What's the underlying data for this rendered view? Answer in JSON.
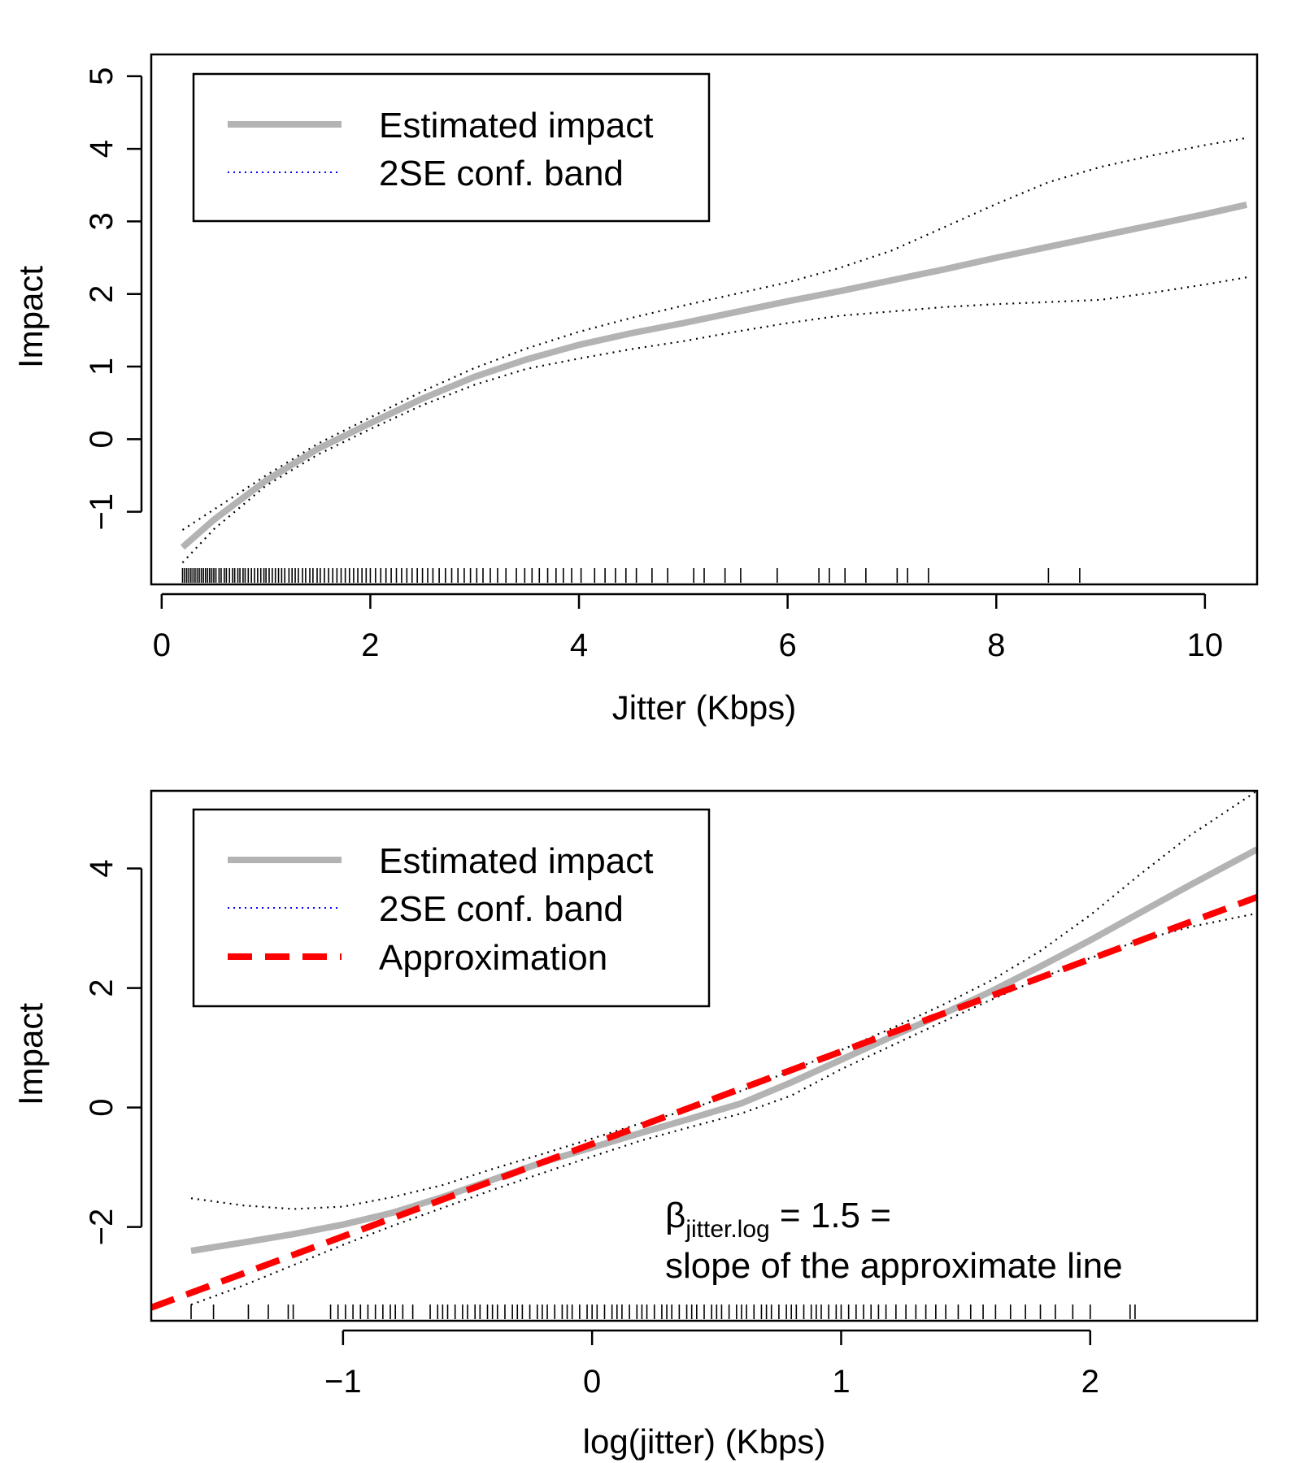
{
  "chart_data": [
    {
      "type": "line",
      "xlabel": "Jitter (Kbps)",
      "ylabel": "Impact",
      "xlim": [
        -0.1,
        10.5
      ],
      "ylim": [
        -2.0,
        5.3
      ],
      "xticks": [
        0,
        2,
        4,
        6,
        8,
        10
      ],
      "yticks": [
        -1,
        0,
        1,
        2,
        3,
        4,
        5
      ],
      "xtick_labels": [
        "0",
        "2",
        "4",
        "6",
        "8",
        "10"
      ],
      "ytick_labels": [
        "−1",
        "0",
        "1",
        "2",
        "3",
        "4",
        "5"
      ],
      "legend": {
        "position": "top-left",
        "entries": [
          "Estimated impact",
          "2SE conf. band"
        ]
      },
      "series": [
        {
          "name": "Estimated impact",
          "style": "solid",
          "color": "#b3b3b3",
          "x": [
            0.2,
            0.5,
            1.0,
            1.5,
            2.0,
            2.5,
            3.0,
            3.5,
            4.0,
            4.5,
            5.0,
            5.5,
            6.0,
            6.5,
            7.0,
            7.5,
            8.0,
            8.5,
            9.0,
            9.5,
            10.0,
            10.4
          ],
          "y": [
            -1.49,
            -1.11,
            -0.57,
            -0.13,
            0.22,
            0.56,
            0.86,
            1.1,
            1.3,
            1.46,
            1.6,
            1.75,
            1.9,
            2.04,
            2.19,
            2.34,
            2.5,
            2.65,
            2.8,
            2.95,
            3.1,
            3.23
          ]
        },
        {
          "name": "2SE conf. band",
          "style": "dotted",
          "color": "#000000",
          "x": [
            0.2,
            0.5,
            1.0,
            1.5,
            2.0,
            2.5,
            3.0,
            3.5,
            4.0,
            4.5,
            5.0,
            5.5,
            6.0,
            6.5,
            7.0,
            7.5,
            8.0,
            8.5,
            9.0,
            9.5,
            10.0,
            10.4
          ],
          "y": [
            -1.25,
            -0.97,
            -0.5,
            -0.06,
            0.3,
            0.66,
            0.98,
            1.25,
            1.48,
            1.67,
            1.84,
            2.0,
            2.16,
            2.36,
            2.6,
            2.92,
            3.24,
            3.54,
            3.75,
            3.91,
            4.05,
            4.15
          ]
        },
        {
          "name": "",
          "style": "dotted",
          "color": "#000000",
          "x": [
            0.2,
            0.5,
            1.0,
            1.5,
            2.0,
            2.5,
            3.0,
            3.5,
            4.0,
            4.5,
            5.0,
            5.5,
            6.0,
            6.5,
            7.0,
            7.5,
            8.0,
            8.5,
            9.0,
            9.5,
            10.0,
            10.4
          ],
          "y": [
            -1.7,
            -1.24,
            -0.64,
            -0.21,
            0.14,
            0.47,
            0.75,
            0.97,
            1.11,
            1.24,
            1.35,
            1.48,
            1.6,
            1.7,
            1.76,
            1.82,
            1.86,
            1.89,
            1.92,
            2.02,
            2.13,
            2.23
          ]
        }
      ],
      "rug": [
        0.2,
        0.22,
        0.24,
        0.26,
        0.28,
        0.3,
        0.32,
        0.34,
        0.36,
        0.38,
        0.4,
        0.42,
        0.44,
        0.46,
        0.48,
        0.5,
        0.52,
        0.55,
        0.57,
        0.6,
        0.62,
        0.65,
        0.68,
        0.7,
        0.73,
        0.75,
        0.78,
        0.8,
        0.83,
        0.86,
        0.89,
        0.92,
        0.95,
        0.98,
        1.0,
        1.03,
        1.06,
        1.09,
        1.12,
        1.15,
        1.18,
        1.22,
        1.25,
        1.28,
        1.31,
        1.35,
        1.38,
        1.42,
        1.45,
        1.49,
        1.52,
        1.56,
        1.6,
        1.64,
        1.68,
        1.72,
        1.76,
        1.8,
        1.84,
        1.88,
        1.92,
        1.96,
        2.0,
        2.05,
        2.1,
        2.15,
        2.2,
        2.25,
        2.3,
        2.35,
        2.4,
        2.45,
        2.5,
        2.55,
        2.6,
        2.66,
        2.72,
        2.78,
        2.84,
        2.9,
        2.96,
        3.02,
        3.08,
        3.15,
        3.22,
        3.3,
        3.4,
        3.48,
        3.55,
        3.62,
        3.7,
        3.78,
        3.85,
        3.93,
        4.02,
        4.15,
        4.25,
        4.35,
        4.45,
        4.55,
        4.7,
        4.85,
        5.1,
        5.2,
        5.4,
        5.55,
        5.9,
        6.3,
        6.4,
        6.55,
        6.75,
        7.05,
        7.15,
        7.35,
        8.5,
        8.8
      ]
    },
    {
      "type": "line",
      "xlabel": "log(jitter) (Kbps)",
      "ylabel": "Impact",
      "xlim": [
        -1.77,
        2.67
      ],
      "ylim": [
        -3.57,
        5.3
      ],
      "xticks": [
        -1,
        0,
        1,
        2
      ],
      "yticks": [
        -2,
        0,
        2,
        4
      ],
      "xtick_labels": [
        "−1",
        "0",
        "1",
        "2"
      ],
      "ytick_labels": [
        "−2",
        "0",
        "2",
        "4"
      ],
      "legend": {
        "position": "top-left",
        "entries": [
          "Estimated impact",
          "2SE conf. band",
          "Approximation"
        ]
      },
      "annotation": {
        "beta": "β",
        "subscript": "jitter.log",
        "line1_rest": " = 1.5 =",
        "line2": "slope of the approximate line"
      },
      "series": [
        {
          "name": "Estimated impact",
          "style": "solid",
          "color": "#b3b3b3",
          "x": [
            -1.61,
            -1.4,
            -1.2,
            -1.0,
            -0.8,
            -0.6,
            -0.4,
            -0.2,
            0.0,
            0.2,
            0.4,
            0.6,
            0.8,
            1.0,
            1.2,
            1.4,
            1.6,
            1.8,
            2.0,
            2.2,
            2.4,
            2.67
          ],
          "y": [
            -2.4,
            -2.26,
            -2.12,
            -1.96,
            -1.76,
            -1.5,
            -1.21,
            -0.92,
            -0.67,
            -0.42,
            -0.18,
            0.07,
            0.42,
            0.8,
            1.18,
            1.55,
            1.94,
            2.36,
            2.8,
            3.26,
            3.72,
            4.32
          ]
        },
        {
          "name": "2SE conf. band",
          "style": "dotted",
          "color": "#000000",
          "x": [
            -1.61,
            -1.4,
            -1.2,
            -1.0,
            -0.8,
            -0.6,
            -0.4,
            -0.2,
            0.0,
            0.2,
            0.4,
            0.6,
            0.8,
            1.0,
            1.2,
            1.4,
            1.6,
            1.8,
            2.0,
            2.2,
            2.4,
            2.67
          ],
          "y": [
            -1.52,
            -1.64,
            -1.7,
            -1.66,
            -1.5,
            -1.3,
            -1.03,
            -0.78,
            -0.52,
            -0.26,
            -0.02,
            0.28,
            0.62,
            0.96,
            1.32,
            1.7,
            2.12,
            2.62,
            3.22,
            3.9,
            4.55,
            5.3
          ]
        },
        {
          "name": "",
          "style": "dotted",
          "color": "#000000",
          "x": [
            -1.61,
            -1.4,
            -1.2,
            -1.0,
            -0.8,
            -0.6,
            -0.4,
            -0.2,
            0.0,
            0.2,
            0.4,
            0.6,
            0.8,
            1.0,
            1.2,
            1.4,
            1.6,
            1.8,
            2.0,
            2.2,
            2.4,
            2.67
          ],
          "y": [
            -3.3,
            -2.98,
            -2.64,
            -2.3,
            -1.98,
            -1.68,
            -1.38,
            -1.1,
            -0.82,
            -0.55,
            -0.32,
            -0.1,
            0.2,
            0.64,
            1.03,
            1.42,
            1.8,
            2.16,
            2.5,
            2.8,
            3.02,
            3.25
          ]
        },
        {
          "name": "Approximation",
          "style": "dashed",
          "color": "#ff0000",
          "x": [
            -1.77,
            2.67
          ],
          "y": [
            -3.35,
            3.52
          ]
        }
      ],
      "rug": [
        -1.61,
        -1.52,
        -1.38,
        -1.3,
        -1.22,
        -1.2,
        -1.05,
        -1.02,
        -0.99,
        -0.96,
        -0.93,
        -0.9,
        -0.87,
        -0.84,
        -0.81,
        -0.79,
        -0.76,
        -0.72,
        -0.65,
        -0.62,
        -0.6,
        -0.58,
        -0.55,
        -0.52,
        -0.5,
        -0.47,
        -0.45,
        -0.42,
        -0.4,
        -0.38,
        -0.35,
        -0.32,
        -0.3,
        -0.28,
        -0.25,
        -0.22,
        -0.2,
        -0.18,
        -0.15,
        -0.12,
        -0.1,
        -0.08,
        -0.05,
        -0.02,
        0.0,
        0.02,
        0.05,
        0.08,
        0.1,
        0.12,
        0.15,
        0.18,
        0.2,
        0.22,
        0.25,
        0.28,
        0.3,
        0.32,
        0.35,
        0.38,
        0.4,
        0.42,
        0.45,
        0.48,
        0.5,
        0.52,
        0.55,
        0.58,
        0.6,
        0.62,
        0.65,
        0.68,
        0.7,
        0.72,
        0.75,
        0.78,
        0.8,
        0.82,
        0.85,
        0.88,
        0.9,
        0.92,
        0.95,
        0.98,
        1.0,
        1.03,
        1.06,
        1.09,
        1.12,
        1.15,
        1.18,
        1.22,
        1.26,
        1.3,
        1.34,
        1.38,
        1.42,
        1.47,
        1.52,
        1.57,
        1.62,
        1.68,
        1.74,
        1.8,
        1.86,
        1.93,
        2.0,
        2.16,
        2.18
      ]
    }
  ]
}
